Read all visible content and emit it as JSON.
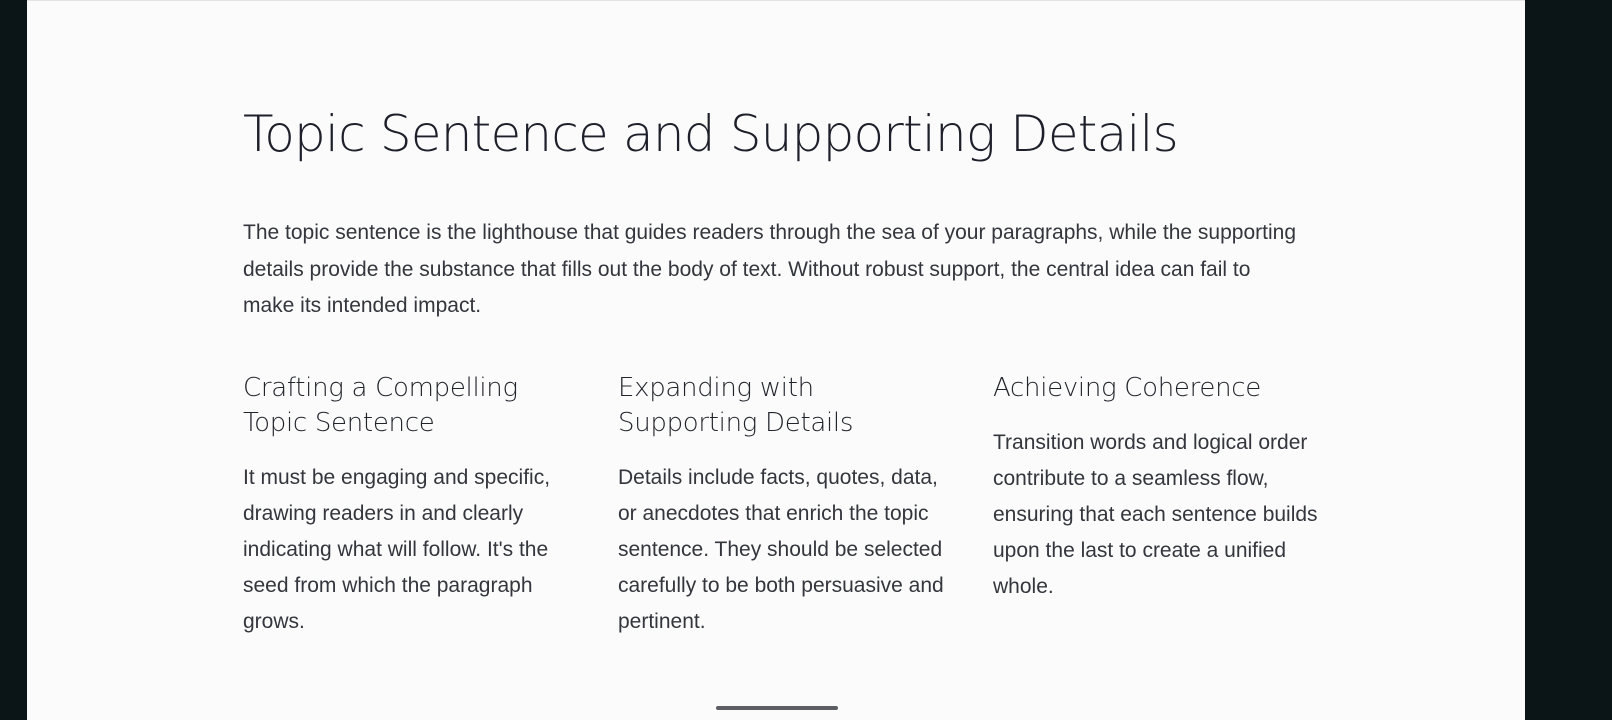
{
  "page": {
    "title": "Topic Sentence and Supporting Details",
    "intro": "The topic sentence is the lighthouse that guides readers through the sea of your paragraphs, while the supporting details provide the substance that fills out the body of text. Without robust support, the central idea can fail to make its intended impact."
  },
  "columns": [
    {
      "heading": "Crafting a Compelling Topic Sentence",
      "text": "It must be engaging and specific, drawing readers in and clearly indicating what will follow. It's the seed from which the paragraph grows."
    },
    {
      "heading": "Expanding with Supporting Details",
      "text": "Details include facts, quotes, data, or anecdotes that enrich the topic sentence. They should be selected carefully to be both persuasive and pertinent."
    },
    {
      "heading": "Achieving Coherence",
      "text": "Transition words and logical order contribute to a seamless flow, ensuring that each sentence builds upon the last to create a unified whole."
    }
  ],
  "colors": {
    "background": "#0b1416",
    "slide": "#fbfbfb",
    "heading": "#1d1f2a",
    "body_text": "#34363d",
    "indicator": "#5c5e64"
  }
}
